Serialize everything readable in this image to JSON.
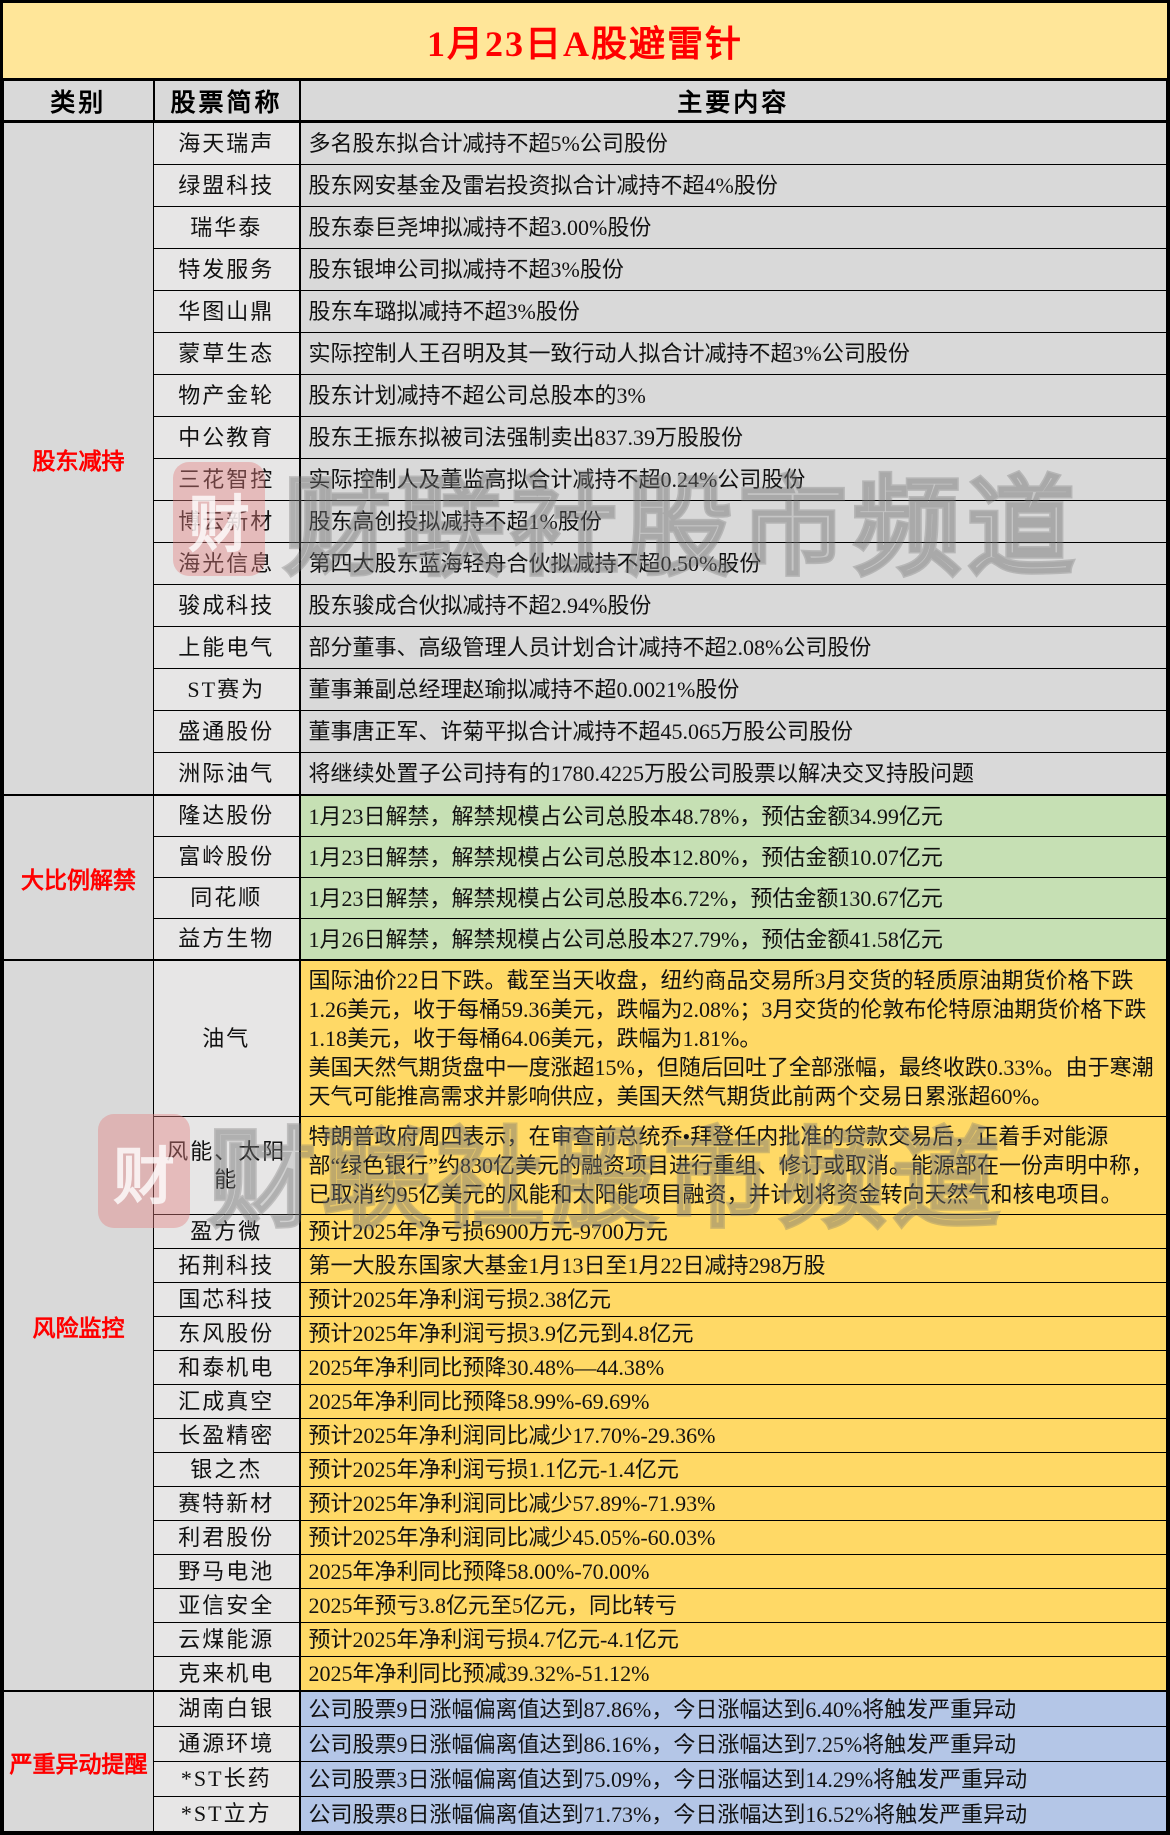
{
  "title": "1月23日A股避雷针",
  "columns": {
    "category": "类别",
    "stock": "股票简称",
    "content": "主要内容"
  },
  "colors": {
    "title_bg": "#FFE699",
    "title_text": "#FF0000",
    "header_bg": "#D9D9D9",
    "category_bg": "#D9D9D9",
    "category_text": "#FF0000",
    "stock_bg": "#E7E6E6",
    "section_gray": "#D9D9D9",
    "section_green": "#C6E0B4",
    "section_yellow": "#FFD966",
    "section_blue": "#B4C6E7",
    "border": "#000000"
  },
  "watermark": {
    "logo_char": "财",
    "text": "财联社股市频道"
  },
  "sections": [
    {
      "category": "股东减持",
      "content_bg": "#D9D9D9",
      "rows": [
        {
          "stock": "海天瑞声",
          "content": "多名股东拟合计减持不超5%公司股份"
        },
        {
          "stock": "绿盟科技",
          "content": "股东网安基金及雷岩投资拟合计减持不超4%股份"
        },
        {
          "stock": "瑞华泰",
          "content": "股东泰巨尧坤拟减持不超3.00%股份"
        },
        {
          "stock": "特发服务",
          "content": "股东银坤公司拟减持不超3%股份"
        },
        {
          "stock": "华图山鼎",
          "content": "股东车璐拟减持不超3%股份"
        },
        {
          "stock": "蒙草生态",
          "content": "实际控制人王召明及其一致行动人拟合计减持不超3%公司股份"
        },
        {
          "stock": "物产金轮",
          "content": "股东计划减持不超公司总股本的3%"
        },
        {
          "stock": "中公教育",
          "content": "股东王振东拟被司法强制卖出837.39万股股份"
        },
        {
          "stock": "三花智控",
          "content": "实际控制人及董监高拟合计减持不超0.24%公司股份"
        },
        {
          "stock": "博云新材",
          "content": "股东高创投拟减持不超1%股份"
        },
        {
          "stock": "海光信息",
          "content": "第四大股东蓝海轻舟合伙拟减持不超0.50%股份"
        },
        {
          "stock": "骏成科技",
          "content": "股东骏成合伙拟减持不超2.94%股份"
        },
        {
          "stock": "上能电气",
          "content": "部分董事、高级管理人员计划合计减持不超2.08%公司股份"
        },
        {
          "stock": "ST赛为",
          "content": "董事兼副总经理赵瑜拟减持不超0.0021%股份"
        },
        {
          "stock": "盛通股份",
          "content": "董事唐正军、许菊平拟合计减持不超45.065万股公司股份"
        },
        {
          "stock": "洲际油气",
          "content": "将继续处置子公司持有的1780.4225万股公司股票以解决交叉持股问题"
        }
      ]
    },
    {
      "category": "大比例解禁",
      "content_bg": "#C6E0B4",
      "rows": [
        {
          "stock": "隆达股份",
          "content": "1月23日解禁，解禁规模占公司总股本48.78%，预估金额34.99亿元"
        },
        {
          "stock": "富岭股份",
          "content": "1月23日解禁，解禁规模占公司总股本12.80%，预估金额10.07亿元"
        },
        {
          "stock": "同花顺",
          "content": "1月23日解禁，解禁规模占公司总股本6.72%，预估金额130.67亿元"
        },
        {
          "stock": "益方生物",
          "content": "1月26日解禁，解禁规模占公司总股本27.79%，预估金额41.58亿元"
        }
      ]
    },
    {
      "category": "风险监控",
      "content_bg": "#FFD966",
      "rows": [
        {
          "stock": "油气",
          "content": "国际油价22日下跌。截至当天收盘，纽约商品交易所3月交货的轻质原油期货价格下跌1.26美元，收于每桶59.36美元，跌幅为2.08%；3月交货的伦敦布伦特原油期货价格下跌1.18美元，收于每桶64.06美元，跌幅为1.81%。\n美国天然气期货盘中一度涨超15%，但随后回吐了全部涨幅，最终收跌0.33%。由于寒潮天气可能推高需求并影响供应，美国天然气期货此前两个交易日累涨超60%。"
        },
        {
          "stock": "风能、太阳能",
          "content": "特朗普政府周四表示，在审查前总统乔•拜登任内批准的贷款交易后，正着手对能源部“绿色银行”约830亿美元的融资项目进行重组、修订或取消。能源部在一份声明中称，已取消约95亿美元的风能和太阳能项目融资，并计划将资金转向天然气和核电项目。"
        },
        {
          "stock": "盈方微",
          "content": "预计2025年净亏损6900万元-9700万元"
        },
        {
          "stock": "拓荆科技",
          "content": "第一大股东国家大基金1月13日至1月22日减持298万股"
        },
        {
          "stock": "国芯科技",
          "content": "预计2025年净利润亏损2.38亿元"
        },
        {
          "stock": "东风股份",
          "content": "预计2025年净利润亏损3.9亿元到4.8亿元"
        },
        {
          "stock": "和泰机电",
          "content": "2025年净利同比预降30.48%—44.38%"
        },
        {
          "stock": "汇成真空",
          "content": "2025年净利同比预降58.99%-69.69%"
        },
        {
          "stock": "长盈精密",
          "content": "预计2025年净利润同比减少17.70%-29.36%"
        },
        {
          "stock": "银之杰",
          "content": "预计2025年净利润亏损1.1亿元-1.4亿元"
        },
        {
          "stock": "赛特新材",
          "content": "预计2025年净利润同比减少57.89%-71.93%"
        },
        {
          "stock": "利君股份",
          "content": "预计2025年净利润同比减少45.05%-60.03%"
        },
        {
          "stock": "野马电池",
          "content": "2025年净利同比预降58.00%-70.00%"
        },
        {
          "stock": "亚信安全",
          "content": "2025年预亏3.8亿元至5亿元，同比转亏"
        },
        {
          "stock": "云煤能源",
          "content": "预计2025年净利润亏损4.7亿元-4.1亿元"
        },
        {
          "stock": "克来机电",
          "content": "2025年净利同比预减39.32%-51.12%"
        }
      ]
    },
    {
      "category": "严重异动提醒",
      "content_bg": "#B4C6E7",
      "rows": [
        {
          "stock": "湖南白银",
          "content": "公司股票9日涨幅偏离值达到87.86%，今日涨幅达到6.40%将触发严重异动"
        },
        {
          "stock": "通源环境",
          "content": "公司股票9日涨幅偏离值达到86.16%，今日涨幅达到7.25%将触发严重异动"
        },
        {
          "stock": "*ST长药",
          "content": "公司股票3日涨幅偏离值达到75.09%，今日涨幅达到14.29%将触发严重异动"
        },
        {
          "stock": "*ST立方",
          "content": "公司股票8日涨幅偏离值达到71.73%，今日涨幅达到16.52%将触发严重异动"
        }
      ]
    }
  ]
}
